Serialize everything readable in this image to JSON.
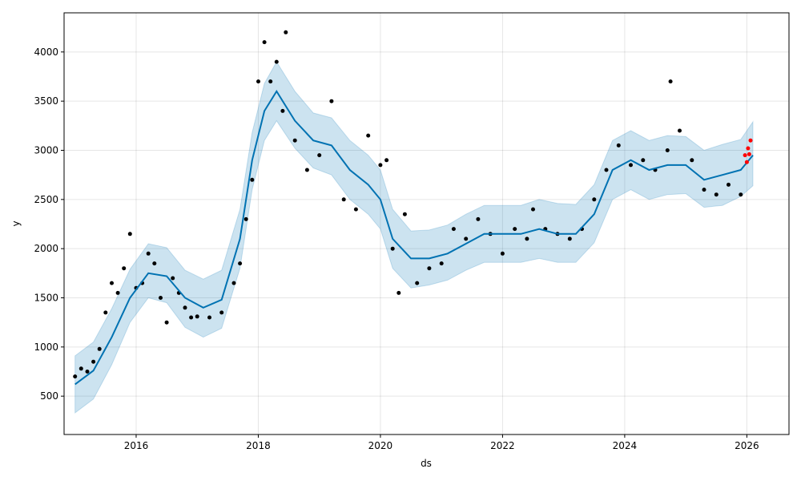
{
  "chart_data": {
    "type": "line",
    "title": "",
    "xlabel": "ds",
    "ylabel": "y",
    "xlim": [
      2014.82,
      2026.69
    ],
    "ylim": [
      110,
      4398
    ],
    "grid": true,
    "x_ticks": [
      2016,
      2018,
      2020,
      2022,
      2024,
      2026
    ],
    "x_tick_labels": [
      "2016",
      "2018",
      "2020",
      "2022",
      "2024",
      "2026"
    ],
    "y_ticks": [
      500,
      1000,
      1500,
      2000,
      2500,
      3000,
      3500,
      4000
    ],
    "y_tick_labels": [
      "500",
      "1000",
      "1500",
      "2000",
      "2500",
      "3000",
      "3500",
      "4000"
    ],
    "colors": {
      "observed": "#000000",
      "recent_observed": "#ff0000",
      "forecast_line": "#0072b2",
      "uncertainty_band": "#0072b2"
    },
    "series": [
      {
        "kind": "forecast",
        "x": [
          2015.0,
          2015.3,
          2015.6,
          2015.9,
          2016.2,
          2016.5,
          2016.8,
          2017.1,
          2017.4,
          2017.7,
          2017.9,
          2018.1,
          2018.3,
          2018.6,
          2018.9,
          2019.2,
          2019.5,
          2019.8,
          2020.0,
          2020.2,
          2020.5,
          2020.8,
          2021.1,
          2021.4,
          2021.7,
          2022.0,
          2022.3,
          2022.6,
          2022.9,
          2023.2,
          2023.5,
          2023.8,
          2024.1,
          2024.4,
          2024.7,
          2025.0,
          2025.3,
          2025.6,
          2025.9,
          2026.1
        ],
        "yhat": [
          620,
          760,
          1100,
          1500,
          1750,
          1720,
          1500,
          1400,
          1480,
          2100,
          2900,
          3400,
          3600,
          3300,
          3100,
          3050,
          2800,
          2650,
          2500,
          2100,
          1900,
          1900,
          1950,
          2050,
          2150,
          2150,
          2150,
          2200,
          2150,
          2150,
          2350,
          2800,
          2900,
          2800,
          2850,
          2850,
          2700,
          2750,
          2800,
          2950
        ],
        "yhat_lower": [
          330,
          470,
          820,
          1250,
          1500,
          1450,
          1200,
          1100,
          1190,
          1800,
          2600,
          3100,
          3300,
          3020,
          2820,
          2750,
          2500,
          2350,
          2200,
          1800,
          1600,
          1630,
          1680,
          1780,
          1860,
          1860,
          1860,
          1900,
          1860,
          1860,
          2060,
          2500,
          2600,
          2500,
          2550,
          2560,
          2420,
          2440,
          2530,
          2640
        ],
        "yhat_upper": [
          910,
          1050,
          1390,
          1790,
          2050,
          2010,
          1780,
          1690,
          1780,
          2400,
          3180,
          3680,
          3900,
          3600,
          3380,
          3330,
          3100,
          2950,
          2800,
          2400,
          2180,
          2190,
          2240,
          2350,
          2440,
          2440,
          2440,
          2500,
          2460,
          2450,
          2650,
          3100,
          3200,
          3100,
          3150,
          3140,
          3000,
          3060,
          3110,
          3290
        ]
      },
      {
        "kind": "observed",
        "x": [
          2015.0,
          2015.1,
          2015.2,
          2015.3,
          2015.4,
          2015.5,
          2015.6,
          2015.7,
          2015.8,
          2015.9,
          2016.0,
          2016.1,
          2016.2,
          2016.3,
          2016.4,
          2016.5,
          2016.6,
          2016.7,
          2016.8,
          2016.9,
          2017.0,
          2017.2,
          2017.4,
          2017.6,
          2017.7,
          2017.8,
          2017.9,
          2018.0,
          2018.1,
          2018.2,
          2018.3,
          2018.4,
          2018.45,
          2018.6,
          2018.8,
          2019.0,
          2019.2,
          2019.4,
          2019.6,
          2019.8,
          2020.0,
          2020.1,
          2020.2,
          2020.3,
          2020.4,
          2020.6,
          2020.8,
          2021.0,
          2021.2,
          2021.4,
          2021.6,
          2021.8,
          2022.0,
          2022.2,
          2022.4,
          2022.5,
          2022.7,
          2022.9,
          2023.1,
          2023.3,
          2023.5,
          2023.7,
          2023.9,
          2024.1,
          2024.3,
          2024.5,
          2024.7,
          2024.75,
          2024.9,
          2025.1,
          2025.3,
          2025.5,
          2025.7,
          2025.9
        ],
        "y": [
          700,
          780,
          750,
          850,
          980,
          1350,
          1650,
          1550,
          1800,
          2150,
          1600,
          1650,
          1950,
          1850,
          1500,
          1250,
          1700,
          1550,
          1400,
          1300,
          1310,
          1300,
          1350,
          1650,
          1850,
          2300,
          2700,
          3700,
          4100,
          3700,
          3900,
          3400,
          4200,
          3100,
          2800,
          2950,
          3500,
          2500,
          2400,
          3150,
          2850,
          2900,
          2000,
          1550,
          2350,
          1650,
          1800,
          1850,
          2200,
          2100,
          2300,
          2150,
          1950,
          2200,
          2100,
          2400,
          2200,
          2150,
          2100,
          2200,
          2500,
          2800,
          3050,
          2850,
          2900,
          2800,
          3000,
          3700,
          3200,
          2900,
          2600,
          2550,
          2650,
          2550
        ]
      },
      {
        "kind": "recent_observed",
        "x": [
          2025.97,
          2026.0,
          2026.02,
          2026.04,
          2026.06
        ],
        "y": [
          2950,
          2880,
          3020,
          2960,
          3100
        ]
      }
    ]
  }
}
